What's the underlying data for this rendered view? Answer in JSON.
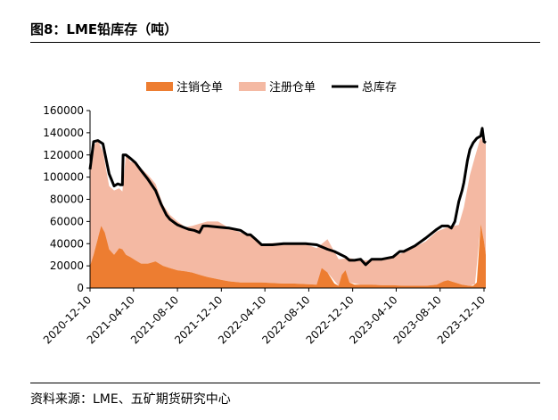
{
  "header": {
    "title": "图8：LME铅库存（吨）"
  },
  "footer": {
    "source": "资料来源：LME、五矿期货研究中心"
  },
  "chart_data": {
    "type": "area",
    "title": "",
    "xlabel": "",
    "ylabel": "",
    "ylim": [
      0,
      160000
    ],
    "y_ticks": [
      "0",
      "20000",
      "40000",
      "60000",
      "80000",
      "100000",
      "120000",
      "140000",
      "160000"
    ],
    "x_ticks": [
      "2020-12-10",
      "2021-04-10",
      "2021-08-10",
      "2021-12-10",
      "2022-04-10",
      "2022-08-10",
      "2022-12-10",
      "2023-04-10",
      "2023-08-10",
      "2023-12-10"
    ],
    "legend_position": "top",
    "grid": false,
    "series": [
      {
        "name": "注销仓单",
        "kind": "area",
        "color": "#ED7D31",
        "dates": [
          "2020-12-10",
          "2020-12-20",
          "2021-01-01",
          "2021-01-10",
          "2021-01-20",
          "2021-02-01",
          "2021-02-15",
          "2021-03-01",
          "2021-03-10",
          "2021-03-20",
          "2021-04-01",
          "2021-04-15",
          "2021-05-01",
          "2021-05-20",
          "2021-06-10",
          "2021-07-01",
          "2021-07-20",
          "2021-08-10",
          "2021-09-01",
          "2021-09-20",
          "2021-10-10",
          "2021-11-01",
          "2021-12-01",
          "2022-01-01",
          "2022-02-01",
          "2022-03-01",
          "2022-04-01",
          "2022-05-01",
          "2022-06-01",
          "2022-07-01",
          "2022-08-01",
          "2022-09-01",
          "2022-09-15",
          "2022-10-01",
          "2022-10-20",
          "2022-11-01",
          "2022-11-10",
          "2022-11-20",
          "2022-12-01",
          "2022-12-15",
          "2023-01-01",
          "2023-02-01",
          "2023-03-01",
          "2023-04-01",
          "2023-05-01",
          "2023-06-01",
          "2023-07-01",
          "2023-08-01",
          "2023-08-20",
          "2023-09-01",
          "2023-09-20",
          "2023-10-10",
          "2023-10-30",
          "2023-11-10",
          "2023-11-20",
          "2023-12-01",
          "2023-12-10",
          "2023-12-15"
        ],
        "values": [
          20000,
          30000,
          45000,
          56000,
          50000,
          35000,
          30000,
          36000,
          35000,
          30000,
          28000,
          25000,
          22000,
          22000,
          24000,
          20000,
          18000,
          16000,
          15000,
          14000,
          12000,
          10000,
          8000,
          6000,
          5000,
          5000,
          5000,
          4500,
          4000,
          4000,
          3500,
          3000,
          18000,
          14000,
          4000,
          2000,
          12000,
          16000,
          5000,
          3000,
          3000,
          3000,
          2500,
          2500,
          2000,
          2000,
          2000,
          3000,
          6000,
          7000,
          5000,
          3000,
          2000,
          2000,
          5000,
          58000,
          42000,
          30000
        ]
      },
      {
        "name": "注册仓单",
        "kind": "area",
        "color": "#F4B9A3",
        "stacked_on": "注销仓单",
        "dates": [
          "2020-12-10",
          "2020-12-20",
          "2021-01-01",
          "2021-01-15",
          "2021-02-01",
          "2021-02-15",
          "2021-03-01",
          "2021-03-10",
          "2021-03-20",
          "2021-04-01",
          "2021-04-15",
          "2021-05-01",
          "2021-05-20",
          "2021-06-10",
          "2021-07-01",
          "2021-07-20",
          "2021-08-10",
          "2021-09-01",
          "2021-09-20",
          "2021-10-10",
          "2021-11-01",
          "2021-12-01",
          "2022-01-01",
          "2022-02-01",
          "2022-03-01",
          "2022-04-01",
          "2022-05-01",
          "2022-06-01",
          "2022-07-01",
          "2022-08-01",
          "2022-09-01",
          "2022-10-01",
          "2022-11-01",
          "2022-12-01",
          "2023-01-01",
          "2023-02-01",
          "2023-03-01",
          "2023-04-01",
          "2023-05-01",
          "2023-06-01",
          "2023-07-01",
          "2023-08-01",
          "2023-09-01",
          "2023-10-01",
          "2023-10-15",
          "2023-11-01",
          "2023-11-15",
          "2023-12-01",
          "2023-12-10",
          "2023-12-15"
        ],
        "values": [
          85000,
          98000,
          88000,
          70000,
          57000,
          58000,
          54000,
          52000,
          91000,
          86000,
          88000,
          86000,
          80000,
          70000,
          55000,
          48000,
          44000,
          40000,
          42000,
          46000,
          50000,
          52000,
          48000,
          45000,
          42000,
          35000,
          36000,
          37000,
          37000,
          36000,
          33000,
          30000,
          24000,
          22000,
          22000,
          22000,
          23000,
          26000,
          30000,
          35000,
          40000,
          48000,
          48000,
          53000,
          70000,
          100000,
          115000,
          78000,
          88000,
          100000
        ]
      },
      {
        "name": "总库存",
        "kind": "line",
        "color": "#000000",
        "dates": [
          "2020-12-10",
          "2020-12-20",
          "2021-01-01",
          "2021-01-15",
          "2021-02-01",
          "2021-02-15",
          "2021-02-25",
          "2021-03-05",
          "2021-03-10",
          "2021-03-12",
          "2021-03-20",
          "2021-04-01",
          "2021-04-15",
          "2021-05-01",
          "2021-05-20",
          "2021-06-10",
          "2021-06-25",
          "2021-07-10",
          "2021-07-20",
          "2021-08-01",
          "2021-08-10",
          "2021-08-25",
          "2021-09-10",
          "2021-09-25",
          "2021-10-10",
          "2021-10-20",
          "2021-10-25",
          "2021-11-01",
          "2021-12-01",
          "2022-01-01",
          "2022-02-01",
          "2022-02-20",
          "2022-03-01",
          "2022-03-15",
          "2022-04-01",
          "2022-05-01",
          "2022-06-01",
          "2022-07-01",
          "2022-08-01",
          "2022-09-01",
          "2022-10-01",
          "2022-10-20",
          "2022-11-01",
          "2022-11-20",
          "2022-12-01",
          "2022-12-15",
          "2023-01-01",
          "2023-01-15",
          "2023-02-01",
          "2023-03-01",
          "2023-04-01",
          "2023-04-20",
          "2023-05-01",
          "2023-06-01",
          "2023-07-01",
          "2023-08-01",
          "2023-08-15",
          "2023-09-01",
          "2023-09-10",
          "2023-09-20",
          "2023-10-01",
          "2023-10-10",
          "2023-10-15",
          "2023-10-25",
          "2023-11-01",
          "2023-11-10",
          "2023-11-20",
          "2023-12-01",
          "2023-12-05",
          "2023-12-10",
          "2023-12-15"
        ],
        "values": [
          107000,
          132000,
          133000,
          130000,
          103000,
          92000,
          94000,
          93000,
          93000,
          120000,
          120000,
          117000,
          113000,
          106000,
          98000,
          88000,
          76000,
          66000,
          62000,
          59000,
          57000,
          55000,
          53000,
          52000,
          50000,
          56000,
          56000,
          56000,
          55000,
          54000,
          52000,
          48000,
          48000,
          44000,
          39000,
          39000,
          40000,
          40000,
          40000,
          39000,
          35000,
          33000,
          31000,
          28000,
          25000,
          25000,
          26000,
          21000,
          26000,
          26000,
          28000,
          33000,
          33000,
          38000,
          45000,
          53000,
          56000,
          56000,
          54000,
          60000,
          78000,
          88000,
          95000,
          115000,
          125000,
          131000,
          135000,
          137000,
          144000,
          132000,
          131000
        ]
      }
    ]
  }
}
